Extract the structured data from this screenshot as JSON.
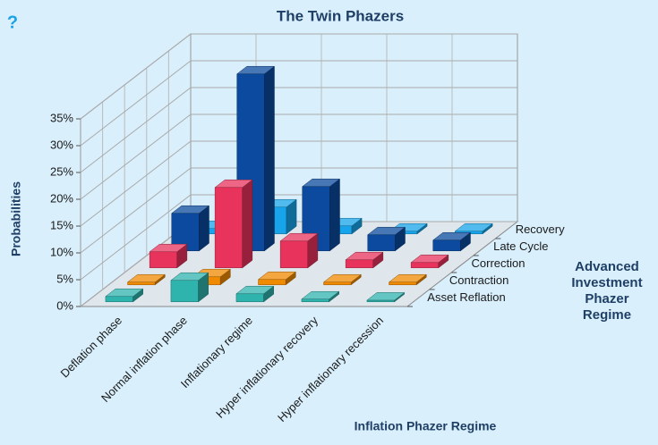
{
  "help_icon": "?",
  "chart_data": {
    "type": "bar3d",
    "title": "The Twin Phazers",
    "ylabel": "Probabilities",
    "xlabel": "Inflation Phazer Regime",
    "zlabel": "Advanced Investment Phazer Regime",
    "categories": [
      "Deflation phase",
      "Normal inflation phase",
      "Inflationary regime",
      "Hyper inflationary recovery",
      "Hyper inflationary recession"
    ],
    "series": [
      {
        "name": "Asset Reflation",
        "color": "#2fb3ad",
        "values": [
          1,
          4,
          1.5,
          0.5,
          0.3
        ]
      },
      {
        "name": "Contraction",
        "color": "#f08a00",
        "values": [
          0.5,
          1.5,
          1,
          0.5,
          0.5
        ]
      },
      {
        "name": "Correction",
        "color": "#e8335c",
        "values": [
          3,
          15,
          5,
          1.5,
          1
        ]
      },
      {
        "name": "Late Cycle",
        "color": "#0b4a9e",
        "values": [
          7,
          33,
          12,
          3,
          2
        ]
      },
      {
        "name": "Recovery",
        "color": "#17a4ea",
        "values": [
          1,
          5,
          1.5,
          0.5,
          0.5
        ]
      }
    ],
    "ylim": [
      0,
      35
    ],
    "yticks": [
      {
        "value": 0,
        "label": "0%"
      },
      {
        "value": 5,
        "label": "5%"
      },
      {
        "value": 10,
        "label": "10%"
      },
      {
        "value": 15,
        "label": "15%"
      },
      {
        "value": 20,
        "label": "20%"
      },
      {
        "value": 25,
        "label": "25%"
      },
      {
        "value": 30,
        "label": "30%"
      },
      {
        "value": 35,
        "label": "35%"
      }
    ],
    "grid": true
  }
}
